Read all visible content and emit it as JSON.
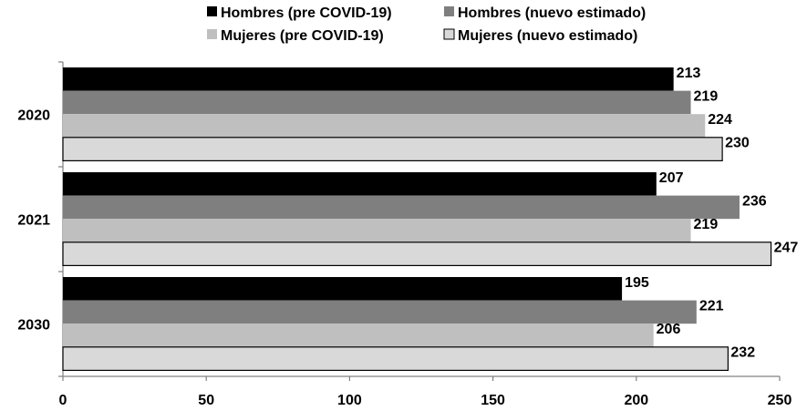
{
  "chart_data": {
    "type": "bar",
    "orientation": "horizontal",
    "categories": [
      "2020",
      "2021",
      "2030"
    ],
    "series": [
      {
        "name": "Hombres (pre COVID-19)",
        "values": [
          213,
          207,
          195
        ],
        "color": "#000000"
      },
      {
        "name": "Hombres (nuevo estimado)",
        "values": [
          219,
          236,
          221
        ],
        "color": "#7f7f7f"
      },
      {
        "name": "Mujeres (pre COVID-19)",
        "values": [
          224,
          219,
          206
        ],
        "color": "#bfbfbf"
      },
      {
        "name": "Mujeres (nuevo estimado)",
        "values": [
          230,
          247,
          232
        ],
        "color": "#d9d9d9",
        "outline": "#000000"
      }
    ],
    "xlim": [
      0,
      250
    ],
    "xticks": [
      0,
      50,
      100,
      150,
      200,
      250
    ],
    "legend_position": "top",
    "grid": false
  }
}
